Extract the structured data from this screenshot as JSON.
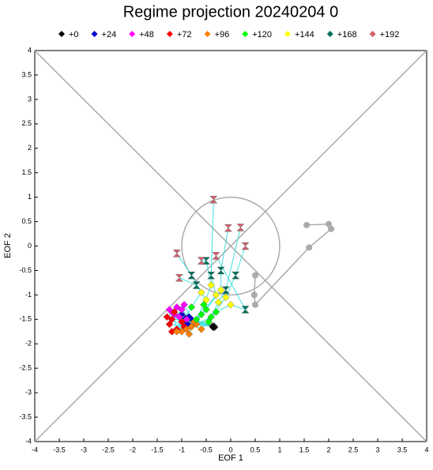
{
  "chart_data": {
    "type": "scatter",
    "title": "Regime projection 20240204 0",
    "x_label": "EOF 1",
    "y_label": "EOF 2",
    "xlim": [
      -4,
      4
    ],
    "ylim": [
      -4,
      4
    ],
    "xticks": [
      -4,
      -3.5,
      -3,
      -2.5,
      -2,
      -1.5,
      -1,
      -0.5,
      0,
      0.5,
      1,
      1.5,
      2,
      2.5,
      3,
      3.5,
      4
    ],
    "yticks": [
      -4,
      -3.5,
      -3,
      -2.5,
      -2,
      -1.5,
      -1,
      -0.5,
      0,
      0.5,
      1,
      1.5,
      2,
      2.5,
      3,
      3.5,
      4
    ],
    "track": {
      "color": "#aaaaaa",
      "x": [
        1.55,
        2.0,
        2.05,
        1.6,
        0.5,
        0.48,
        0.5
      ],
      "y": [
        0.43,
        0.45,
        0.35,
        -0.03,
        -1.2,
        -1.0,
        -0.6
      ]
    },
    "member_line_color": "#40e0e0",
    "series": [
      {
        "name": "+0",
        "color": "#000000",
        "marker": "diamond",
        "x": [
          -0.35,
          -0.36,
          -0.34,
          -0.35,
          -0.33,
          -0.37,
          -0.35,
          -0.36
        ],
        "y": [
          -1.65,
          -1.66,
          -1.64,
          -1.65,
          -1.66,
          -1.64,
          -1.65,
          -1.66
        ]
      },
      {
        "name": "+24",
        "color": "#0000cc",
        "marker": "diamond",
        "x": [
          -0.9,
          -0.85,
          -0.95,
          -0.8,
          -1.0,
          -0.88,
          -0.92,
          -0.75
        ],
        "y": [
          -1.5,
          -1.45,
          -1.55,
          -1.5,
          -1.4,
          -1.6,
          -1.48,
          -1.55
        ]
      },
      {
        "name": "+48",
        "color": "#ff00ff",
        "marker": "diamond",
        "x": [
          -1.1,
          -1.0,
          -1.2,
          -0.95,
          -1.15,
          -1.05,
          -1.25,
          -0.9
        ],
        "y": [
          -1.25,
          -1.3,
          -1.35,
          -1.2,
          -1.4,
          -1.45,
          -1.3,
          -1.5
        ]
      },
      {
        "name": "+72",
        "color": "#ff0000",
        "marker": "diamond",
        "x": [
          -1.2,
          -1.25,
          -1.1,
          -1.3,
          -1.0,
          -1.15,
          -0.95,
          -1.2
        ],
        "y": [
          -1.5,
          -1.6,
          -1.7,
          -1.45,
          -1.55,
          -1.35,
          -1.65,
          -1.75
        ]
      },
      {
        "name": "+96",
        "color": "#ff8000",
        "marker": "diamond",
        "x": [
          -0.9,
          -0.8,
          -1.0,
          -0.7,
          -0.85,
          -0.6,
          -1.1,
          -0.75
        ],
        "y": [
          -1.7,
          -1.65,
          -1.75,
          -1.6,
          -1.8,
          -1.7,
          -1.75,
          -1.55
        ]
      },
      {
        "name": "+120",
        "color": "#00ff00",
        "marker": "diamond",
        "x": [
          -0.6,
          -0.5,
          -0.7,
          -0.4,
          -0.55,
          -0.3,
          -0.8,
          -0.45
        ],
        "y": [
          -1.4,
          -1.3,
          -1.5,
          -1.45,
          -1.2,
          -1.35,
          -1.25,
          -1.55
        ]
      },
      {
        "name": "+144",
        "color": "#ffff00",
        "marker": "diamond",
        "x": [
          -0.3,
          -0.2,
          -0.5,
          -0.1,
          -0.4,
          0.0,
          -0.6,
          -0.25
        ],
        "y": [
          -1.0,
          -0.9,
          -1.1,
          -1.05,
          -0.8,
          -1.2,
          -0.95,
          -1.15
        ]
      },
      {
        "name": "+168",
        "color": "#00705a",
        "marker": "hourglass",
        "x": [
          -0.4,
          -0.2,
          -0.7,
          0.1,
          -0.5,
          0.3,
          -0.8,
          -0.1
        ],
        "y": [
          -0.6,
          -0.5,
          -0.8,
          -0.6,
          -0.3,
          -1.3,
          -0.6,
          -0.9
        ]
      },
      {
        "name": "+192",
        "color": "#d0606a",
        "marker": "hourglass",
        "x": [
          -0.35,
          -0.05,
          -1.05,
          0.3,
          -0.6,
          -0.3,
          -1.1,
          0.2
        ],
        "y": [
          0.95,
          0.37,
          -0.65,
          0.0,
          -0.3,
          -0.2,
          -0.15,
          0.38
        ]
      }
    ]
  }
}
